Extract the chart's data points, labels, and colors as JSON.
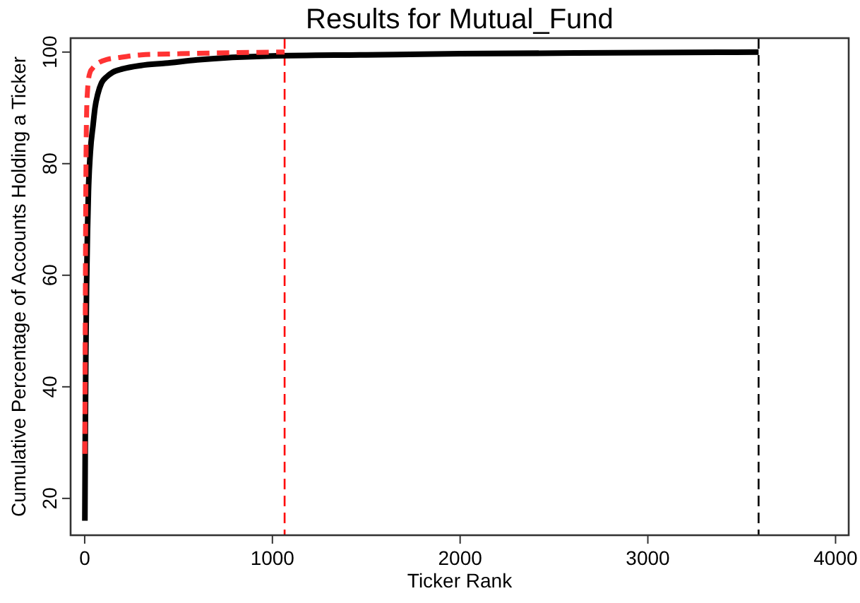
{
  "chart_data": {
    "type": "line",
    "title": "Results for Mutual_Fund",
    "xlabel": "Ticker Rank",
    "ylabel": "Cumulative Percentage of Accounts Holding a Ticker",
    "xlim": [
      -75,
      4070
    ],
    "ylim": [
      13.4,
      102.5
    ],
    "xticks": [
      0,
      1000,
      2000,
      3000,
      4000
    ],
    "yticks": [
      20,
      40,
      60,
      80,
      100
    ],
    "grid": false,
    "series": [
      {
        "color": "#000000",
        "line_style": "solid",
        "x": [
          1,
          3,
          6,
          10,
          15,
          20,
          30,
          45,
          55,
          70,
          90,
          115,
          150,
          204,
          300,
          430,
          600,
          1000,
          1500,
          2000,
          3000,
          3590
        ],
        "values": [
          16,
          30,
          45,
          58,
          68,
          75,
          82,
          87,
          90,
          92.5,
          94.5,
          95.5,
          96.4,
          97,
          97.6,
          98,
          98.6,
          99.3,
          99.5,
          99.7,
          99.9,
          100
        ]
      },
      {
        "color": "#ff3333",
        "line_style": "dashed",
        "x": [
          1,
          3,
          5,
          8,
          11,
          15,
          20,
          30,
          40,
          55,
          80,
          120,
          178,
          300,
          500,
          800,
          1065
        ],
        "values": [
          28,
          50,
          68,
          84,
          90,
          93,
          95,
          96.5,
          97,
          97.6,
          98.2,
          98.7,
          99,
          99.5,
          99.7,
          99.9,
          100
        ]
      }
    ],
    "ref_lines": [
      {
        "axis": "x",
        "value": 1065,
        "color": "#ff0000",
        "line_style": "dashed"
      },
      {
        "axis": "x",
        "value": 3590,
        "color": "#000000",
        "line_style": "dashed"
      }
    ]
  }
}
